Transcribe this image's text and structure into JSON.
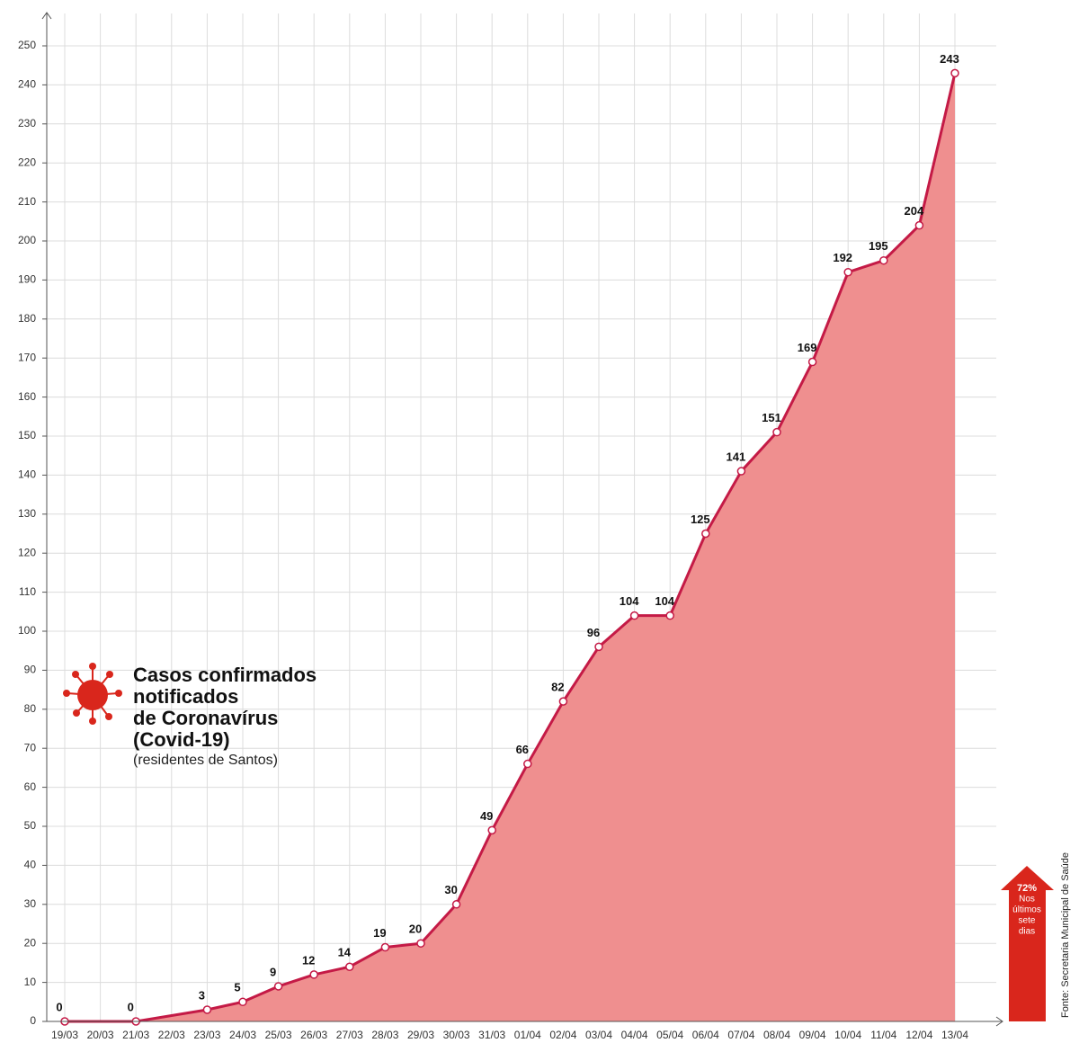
{
  "chart_data": {
    "type": "area",
    "title_lines": [
      "Casos confirmados",
      "notificados",
      "de Coronavírus",
      "(Covid-19)"
    ],
    "subtitle": "(residentes de Santos)",
    "categories": [
      "19/03",
      "20/03",
      "21/03",
      "22/03",
      "23/03",
      "24/03",
      "25/03",
      "26/03",
      "27/03",
      "28/03",
      "29/03",
      "30/03",
      "31/03",
      "01/04",
      "02/04",
      "03/04",
      "04/04",
      "05/04",
      "06/04",
      "07/04",
      "08/04",
      "09/04",
      "10/04",
      "11/04",
      "12/04",
      "13/04"
    ],
    "values": [
      0,
      null,
      0,
      null,
      3,
      5,
      9,
      12,
      14,
      19,
      20,
      30,
      49,
      66,
      82,
      96,
      104,
      104,
      125,
      141,
      151,
      169,
      192,
      195,
      204,
      243
    ],
    "line_color": "#c41a46",
    "fill_color": "#ef8f8f",
    "ylim": [
      0,
      250
    ],
    "yticks": [
      0,
      10,
      20,
      30,
      40,
      50,
      60,
      70,
      80,
      90,
      100,
      110,
      120,
      130,
      140,
      150,
      160,
      170,
      180,
      190,
      200,
      210,
      220,
      230,
      240,
      250
    ],
    "grid": true,
    "annotation": {
      "value": "72%",
      "lines": [
        "Nos",
        "últimos",
        "sete",
        "dias"
      ],
      "color": "#d9261c"
    },
    "source": "Fonte: Secretaria Municipal de Saúde"
  }
}
